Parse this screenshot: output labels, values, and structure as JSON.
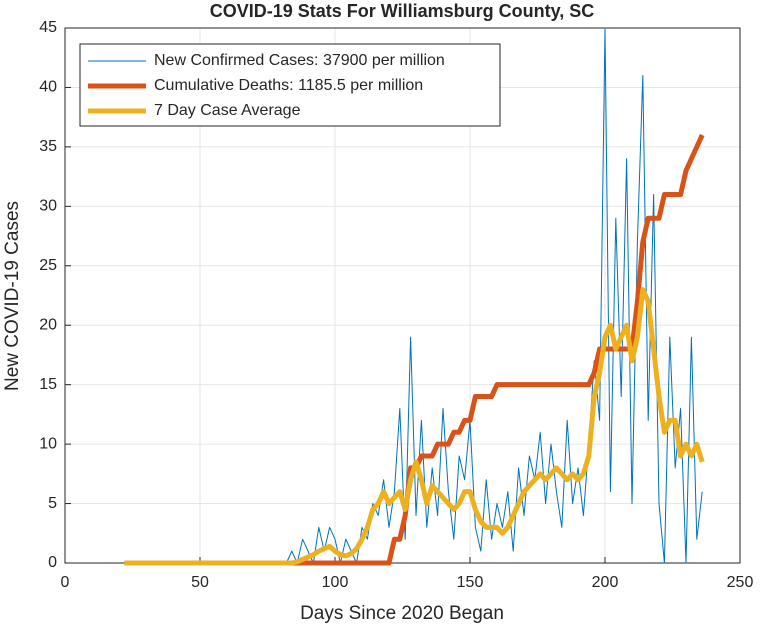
{
  "chart_data": {
    "type": "line",
    "title": "COVID-19 Stats For Williamsburg County, SC",
    "x_label": "Days Since 2020 Began",
    "y_label": "New COVID-19 Cases",
    "xlim": [
      0,
      250
    ],
    "xticks": [
      0,
      50,
      100,
      150,
      200,
      250
    ],
    "ylim": [
      0,
      45
    ],
    "yticks": [
      0,
      5,
      10,
      15,
      20,
      25,
      30,
      35,
      40,
      45
    ],
    "grid": true,
    "legend": "upper-left",
    "x": [
      22,
      24,
      26,
      28,
      30,
      32,
      34,
      36,
      38,
      40,
      42,
      44,
      46,
      48,
      50,
      52,
      54,
      56,
      58,
      60,
      62,
      64,
      66,
      68,
      70,
      72,
      74,
      76,
      78,
      80,
      82,
      84,
      86,
      88,
      90,
      92,
      94,
      96,
      98,
      100,
      102,
      104,
      106,
      108,
      110,
      112,
      114,
      116,
      118,
      120,
      122,
      124,
      126,
      128,
      130,
      132,
      134,
      136,
      138,
      140,
      142,
      144,
      146,
      148,
      150,
      152,
      154,
      156,
      158,
      160,
      162,
      164,
      166,
      168,
      170,
      172,
      174,
      176,
      178,
      180,
      182,
      184,
      186,
      188,
      190,
      192,
      194,
      196,
      198,
      200,
      202,
      204,
      206,
      208,
      210,
      212,
      214,
      216,
      218,
      220,
      222,
      224,
      226,
      228,
      230,
      232,
      234,
      236
    ],
    "series": [
      {
        "name": "New Confirmed Cases: 37900 per million",
        "color": "#0072BD",
        "width": 1,
        "values": [
          0,
          0,
          0,
          0,
          0,
          0,
          0,
          0,
          0,
          0,
          0,
          0,
          0,
          0,
          0,
          0,
          0,
          0,
          0,
          0,
          0,
          0,
          0,
          0,
          0,
          0,
          0,
          0,
          0,
          0,
          0,
          1,
          0,
          2,
          1,
          0,
          3,
          1,
          3,
          2,
          0,
          2,
          1,
          0,
          3,
          2,
          5,
          4,
          7,
          3,
          6,
          13,
          2,
          19,
          4,
          12,
          3,
          8,
          4,
          13,
          6,
          2,
          9,
          7,
          12,
          3,
          1,
          7,
          2,
          5,
          3,
          6,
          1,
          8,
          4,
          9,
          7,
          11,
          5,
          10,
          6,
          3,
          12,
          5,
          8,
          4,
          10,
          17,
          12,
          45,
          6,
          29,
          14,
          34,
          5,
          27,
          41,
          12,
          31,
          5,
          0,
          19,
          8,
          13,
          0,
          19,
          2,
          6
        ]
      },
      {
        "name": "Cumulative Deaths: 1185.5 per million",
        "color": "#D95319",
        "width": 5,
        "values": [
          0,
          0,
          0,
          0,
          0,
          0,
          0,
          0,
          0,
          0,
          0,
          0,
          0,
          0,
          0,
          0,
          0,
          0,
          0,
          0,
          0,
          0,
          0,
          0,
          0,
          0,
          0,
          0,
          0,
          0,
          0,
          0,
          0,
          0,
          0,
          0,
          0,
          0,
          0,
          0,
          0,
          0,
          0,
          0,
          0,
          0,
          0,
          0,
          0,
          0,
          2,
          2,
          4,
          8,
          8,
          9,
          9,
          9,
          10,
          10,
          10,
          11,
          11,
          12,
          12,
          14,
          14,
          14,
          14,
          15,
          15,
          15,
          15,
          15,
          15,
          15,
          15,
          15,
          15,
          15,
          15,
          15,
          15,
          15,
          15,
          15,
          15,
          16,
          18,
          18,
          18,
          18,
          18,
          18,
          18,
          22,
          27,
          29,
          29,
          29,
          31,
          31,
          31,
          31,
          33,
          34,
          35,
          36
        ]
      },
      {
        "name": "7 Day Case Average",
        "color": "#EDB120",
        "width": 5,
        "values": [
          0,
          0,
          0,
          0,
          0,
          0,
          0,
          0,
          0,
          0,
          0,
          0,
          0,
          0,
          0,
          0,
          0,
          0,
          0,
          0,
          0,
          0,
          0,
          0,
          0,
          0,
          0,
          0,
          0,
          0,
          0,
          0,
          0.1,
          0.3,
          0.5,
          0.7,
          1,
          1.2,
          1.4,
          1,
          0.7,
          0.6,
          0.8,
          1.2,
          2,
          3,
          4.5,
          5,
          6,
          5,
          5.5,
          6,
          4.5,
          7,
          8.5,
          7,
          5,
          6.5,
          6,
          5.5,
          5,
          4.5,
          5,
          6,
          6,
          4.5,
          3.5,
          3,
          3,
          3,
          2.5,
          3,
          4,
          5,
          6,
          6.5,
          7,
          7.5,
          7,
          7.5,
          8,
          7.5,
          7,
          7.5,
          7,
          7.5,
          9,
          14,
          16,
          19,
          20,
          18,
          19,
          20,
          17,
          19,
          23,
          22,
          18,
          14,
          11,
          12,
          12,
          9,
          10,
          9,
          10,
          8.5
        ]
      }
    ]
  }
}
